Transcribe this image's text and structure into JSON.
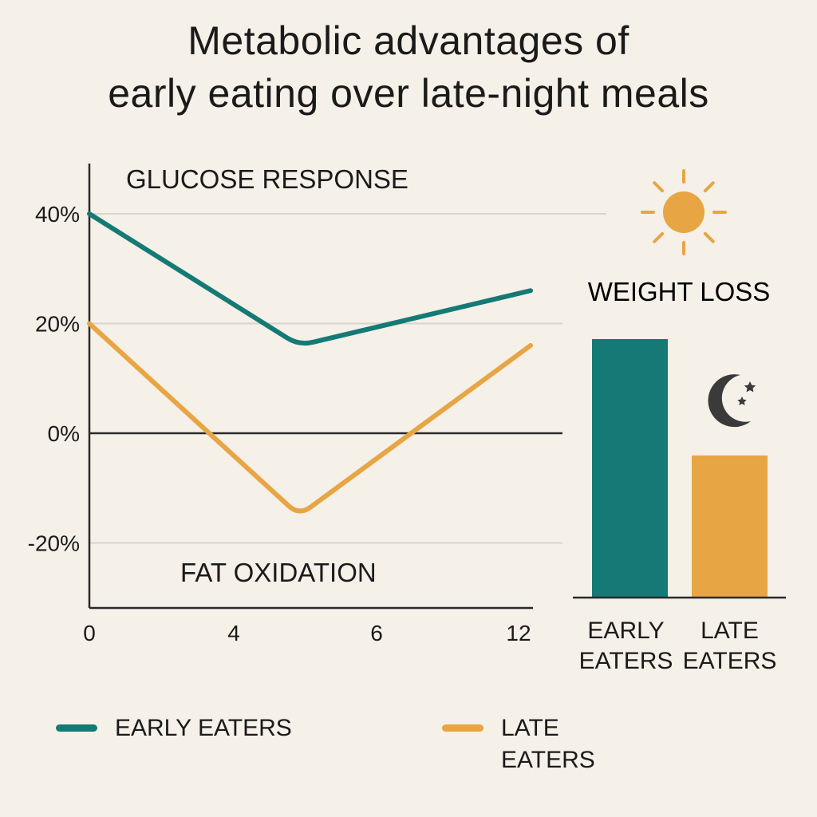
{
  "title_lines": [
    "Metabolic advantages of",
    "early eating over late-night meals"
  ],
  "colors": {
    "early": "#157a75",
    "late": "#e8a543",
    "axis": "#2a2a2a",
    "grid": "#d9d4cc",
    "moon": "#3a3a3a"
  },
  "chart_data": [
    {
      "type": "line",
      "annotations": [
        "GLUCOSE RESPONSE",
        "FAT OXIDATION"
      ],
      "x_tick_labels": [
        "0",
        "4",
        "6",
        "12"
      ],
      "y_tick_labels": [
        "40%",
        "20%",
        "0%",
        "-20%"
      ],
      "y_ticks": [
        40,
        20,
        0,
        -20
      ],
      "ylim": [
        -32,
        49
      ],
      "series": [
        {
          "name": "EARLY EATERS",
          "color_key": "early",
          "x": [
            0,
            5,
            12
          ],
          "y": [
            40,
            16,
            26
          ]
        },
        {
          "name": "LATE EATERS",
          "color_key": "late",
          "x": [
            0,
            5,
            12
          ],
          "y": [
            20,
            -15,
            16
          ]
        }
      ]
    },
    {
      "type": "bar",
      "title": "WEIGHT LOSS",
      "categories": [
        [
          "EARLY",
          "EATERS"
        ],
        [
          "LATE",
          "EATERS"
        ]
      ],
      "values": [
        100,
        55
      ],
      "icons": [
        "sun-icon",
        "moon-stars-icon"
      ]
    }
  ],
  "legend": [
    {
      "label_lines": [
        "EARLY EATERS"
      ],
      "color_key": "early"
    },
    {
      "label_lines": [
        "LATE",
        "EATERS"
      ],
      "color_key": "late"
    }
  ]
}
